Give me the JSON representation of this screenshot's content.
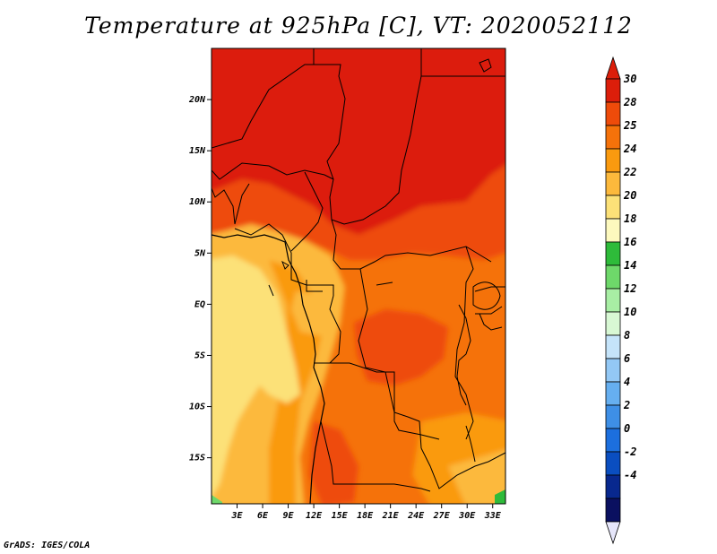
{
  "title": "Temperature at 925hPa [C], VT: 2020052112",
  "credit": "GrADS: IGES/COLA",
  "map": {
    "lat_labels": [
      "20N",
      "15N",
      "10N",
      "5N",
      "EQ",
      "5S",
      "10S",
      "15S"
    ],
    "lon_labels": [
      "3E",
      "6E",
      "9E",
      "12E",
      "15E",
      "18E",
      "21E",
      "24E",
      "27E",
      "30E",
      "33E"
    ],
    "lon_range": [
      0,
      34.5
    ],
    "lat_range": [
      -19.5,
      25
    ]
  },
  "colorbar": {
    "labels": [
      "30",
      "28",
      "25",
      "24",
      "22",
      "20",
      "18",
      "16",
      "14",
      "12",
      "10",
      "8",
      "6",
      "4",
      "2",
      "0",
      "-2",
      "-4"
    ],
    "colors": [
      "#dc1e0a",
      "#ee4b0a",
      "#f5720a",
      "#fa9a0f",
      "#fcb93c",
      "#fce178",
      "#fdf9be",
      "#2ebb3a",
      "#6ed86a",
      "#a8eea4",
      "#d8f8d4",
      "#c5e4fa",
      "#93c8f5",
      "#66aff0",
      "#3e8fe6",
      "#1c6fde",
      "#0a4ec0",
      "#08288e",
      "#0a1060"
    ],
    "top_arrow_color": "#dc1e0a",
    "bottom_arrow_color": "#e6e6fa"
  }
}
